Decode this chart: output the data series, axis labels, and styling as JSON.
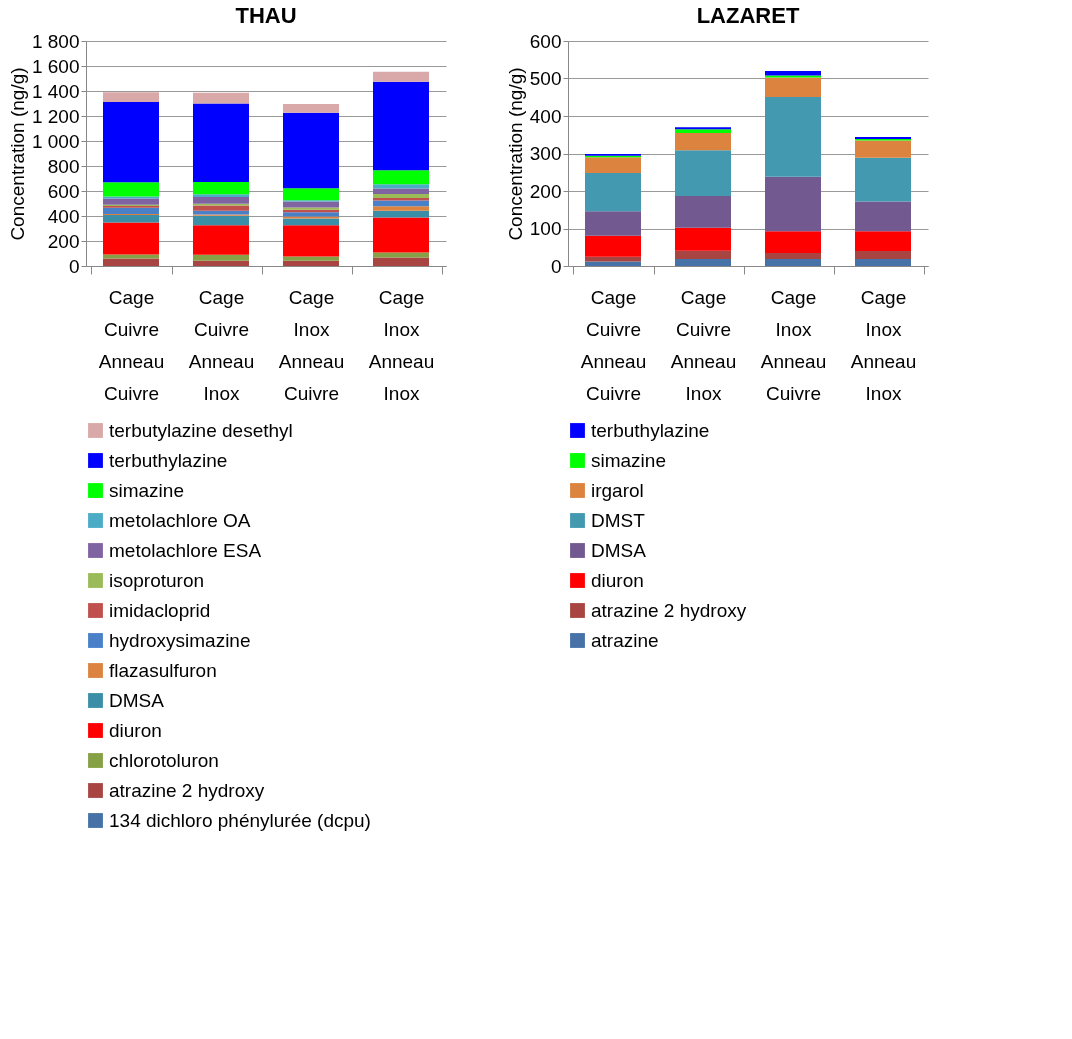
{
  "chart_data": [
    {
      "type": "bar",
      "title": "THAU",
      "ylabel": "Concentration (ng/g)",
      "stacked": true,
      "grid": "y",
      "legend": "bottom",
      "categories": [
        "Cage Cuivre Anneau Cuivre",
        "Cage Cuivre Anneau Inox",
        "Cage Inox Anneau Cuivre",
        "Cage Inox Anneau Inox"
      ],
      "ylim": [
        0,
        1800
      ],
      "yticks": [
        0,
        200,
        400,
        600,
        800,
        {
          "value": 1000,
          "label": "1 000"
        },
        {
          "value": 1200,
          "label": "1 200"
        },
        {
          "value": 1400,
          "label": "1 400"
        },
        {
          "value": 1600,
          "label": "1 600"
        },
        {
          "value": 1800,
          "label": "1 800"
        }
      ],
      "series": [
        {
          "name": "134 dichloro phénylurée (dcpu)",
          "color": "#4672a8",
          "values": [
            0,
            0,
            0,
            0
          ]
        },
        {
          "name": "atrazine 2 hydroxy",
          "color": "#a84542",
          "values": [
            60,
            43,
            43,
            68
          ]
        },
        {
          "name": "chlorotoluron",
          "color": "#86a046",
          "values": [
            32,
            47,
            33,
            41
          ]
        },
        {
          "name": "diuron",
          "color": "#ff0000",
          "values": [
            256,
            236,
            250,
            280
          ]
        },
        {
          "name": "DMSA",
          "color": "#3a8fa6",
          "values": [
            60,
            76,
            55,
            54
          ]
        },
        {
          "name": "flazasulfuron",
          "color": "#dd8340",
          "values": [
            8,
            11,
            16,
            36
          ]
        },
        {
          "name": "hydroxysimazine",
          "color": "#4a80c8",
          "values": [
            50,
            30,
            33,
            46
          ]
        },
        {
          "name": "imidacloprid",
          "color": "#c0504d",
          "values": [
            15,
            41,
            21,
            19
          ]
        },
        {
          "name": "isoproturon",
          "color": "#9bbb59",
          "values": [
            10,
            14,
            17,
            32
          ]
        },
        {
          "name": "metolachlore ESA",
          "color": "#8064a2",
          "values": [
            50,
            54,
            49,
            44
          ]
        },
        {
          "name": "metolachlore OA",
          "color": "#4bacc6",
          "values": [
            15,
            22,
            10,
            35
          ]
        },
        {
          "name": "simazine",
          "color": "#00ff00",
          "values": [
            115,
            98,
            96,
            112
          ]
        },
        {
          "name": "terbuthylazine",
          "color": "#0000ff",
          "values": [
            641,
            628,
            603,
            707
          ]
        },
        {
          "name": "terbutylazine desethyl",
          "color": "#d9a8a8",
          "values": [
            79,
            87,
            71,
            81
          ]
        }
      ]
    },
    {
      "type": "bar",
      "title": "LAZARET",
      "ylabel": "Concentration (ng/g)",
      "stacked": true,
      "grid": "y",
      "legend": "bottom",
      "categories": [
        "Cage Cuivre Anneau Cuivre",
        "Cage Cuivre Anneau Inox",
        "Cage Inox Anneau Cuivre",
        "Cage Inox Anneau Inox"
      ],
      "ylim": [
        0,
        600
      ],
      "yticks": [
        0,
        100,
        200,
        300,
        400,
        500,
        600
      ],
      "series": [
        {
          "name": "atrazine",
          "color": "#4672a8",
          "values": [
            12,
            19,
            19,
            19
          ]
        },
        {
          "name": "atrazine 2 hydroxy",
          "color": "#a84542",
          "values": [
            13,
            22,
            16,
            21
          ]
        },
        {
          "name": "diuron",
          "color": "#ff0000",
          "values": [
            56,
            61,
            58,
            53
          ]
        },
        {
          "name": "DMSA",
          "color": "#725990",
          "values": [
            65,
            85,
            145,
            79
          ]
        },
        {
          "name": "DMST",
          "color": "#4299b0",
          "values": [
            102,
            122,
            213,
            117
          ]
        },
        {
          "name": "irgarol",
          "color": "#dd8340",
          "values": [
            42,
            46,
            52,
            46
          ]
        },
        {
          "name": "simazine",
          "color": "#00ff00",
          "values": [
            4,
            10,
            5,
            4
          ]
        },
        {
          "name": "terbuthylazine",
          "color": "#0000ff",
          "values": [
            5,
            5,
            12,
            5
          ]
        }
      ]
    }
  ]
}
